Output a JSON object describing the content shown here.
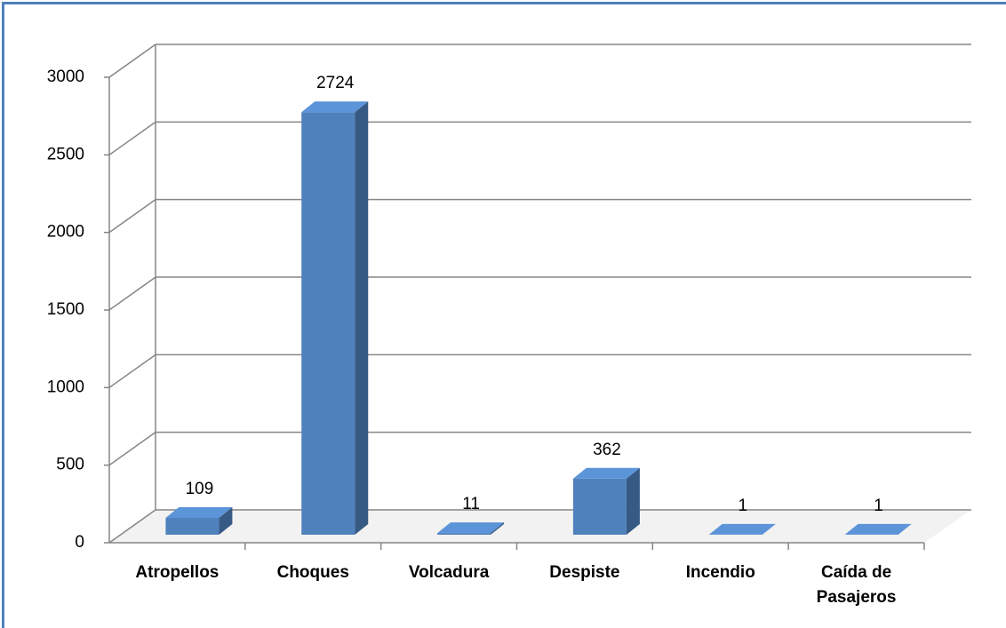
{
  "chart_data": {
    "type": "bar",
    "categories": [
      "Atropellos",
      "Choques",
      "Volcadura",
      "Despiste",
      "Incendio",
      "Caída de Pasajeros"
    ],
    "values": [
      109,
      2724,
      11,
      362,
      1,
      1
    ],
    "color": "#4f81bd",
    "ylim": [
      0,
      3000
    ],
    "yticks": [
      0,
      500,
      1000,
      1500,
      2000,
      2500,
      3000
    ],
    "grid": true
  }
}
